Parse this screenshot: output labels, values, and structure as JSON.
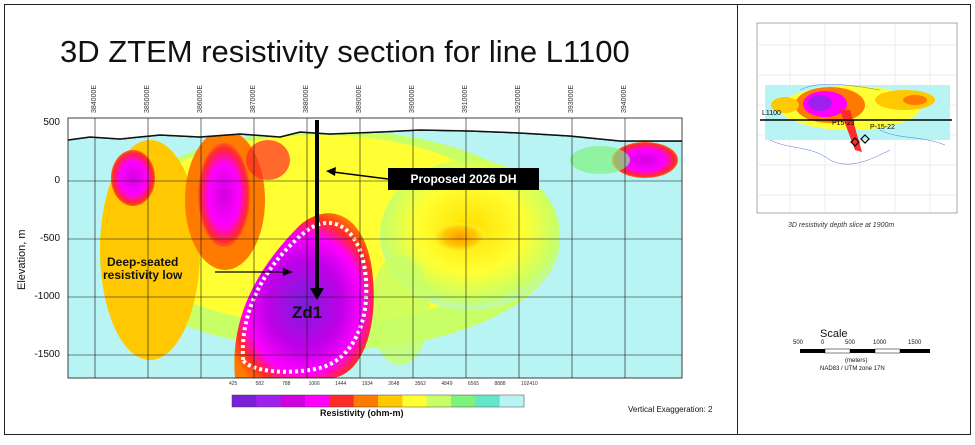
{
  "title": "3D ZTEM resistivity section for line L1100",
  "x_ticks": [
    "384000E",
    "385000E",
    "386000E",
    "387000E",
    "388000E",
    "389000E",
    "390000E",
    "391000E",
    "392000E",
    "393000E",
    "394000E"
  ],
  "y_ticks": [
    "500",
    "0",
    "-500",
    "-1000",
    "-1500"
  ],
  "y_axis_title": "Elevation, m",
  "callout": "Proposed 2026 DH",
  "anomaly_label": "Deep-seated\nresistivity low",
  "target_label": "Zd1",
  "legend": {
    "ticks": [
      "425",
      "582",
      "788",
      "1066",
      "1444",
      "1934",
      "2648",
      "3562",
      "4849",
      "6565",
      "8888",
      "102410"
    ],
    "title": "Resistivity (ohm-m)",
    "colors": [
      "#7b1fd8",
      "#a020f0",
      "#d000e0",
      "#ff00ff",
      "#ff2a2a",
      "#ff7a00",
      "#ffc800",
      "#ffff33",
      "#c8ff66",
      "#7df27d",
      "#66e6c8",
      "#b8f4f4"
    ]
  },
  "vertical_exaggeration": "Vertical Exaggeration: 2",
  "inset": {
    "caption": "3D resistivity depth slice at 1900m",
    "line_label": "L1100",
    "hole1": "P15-23",
    "hole2": "P-15-22"
  },
  "scale": {
    "title": "Scale",
    "ticks": [
      "500",
      "0",
      "500",
      "1000",
      "1500"
    ],
    "units": "(meters)",
    "projection": "NAD83 / UTM zone 17N"
  }
}
